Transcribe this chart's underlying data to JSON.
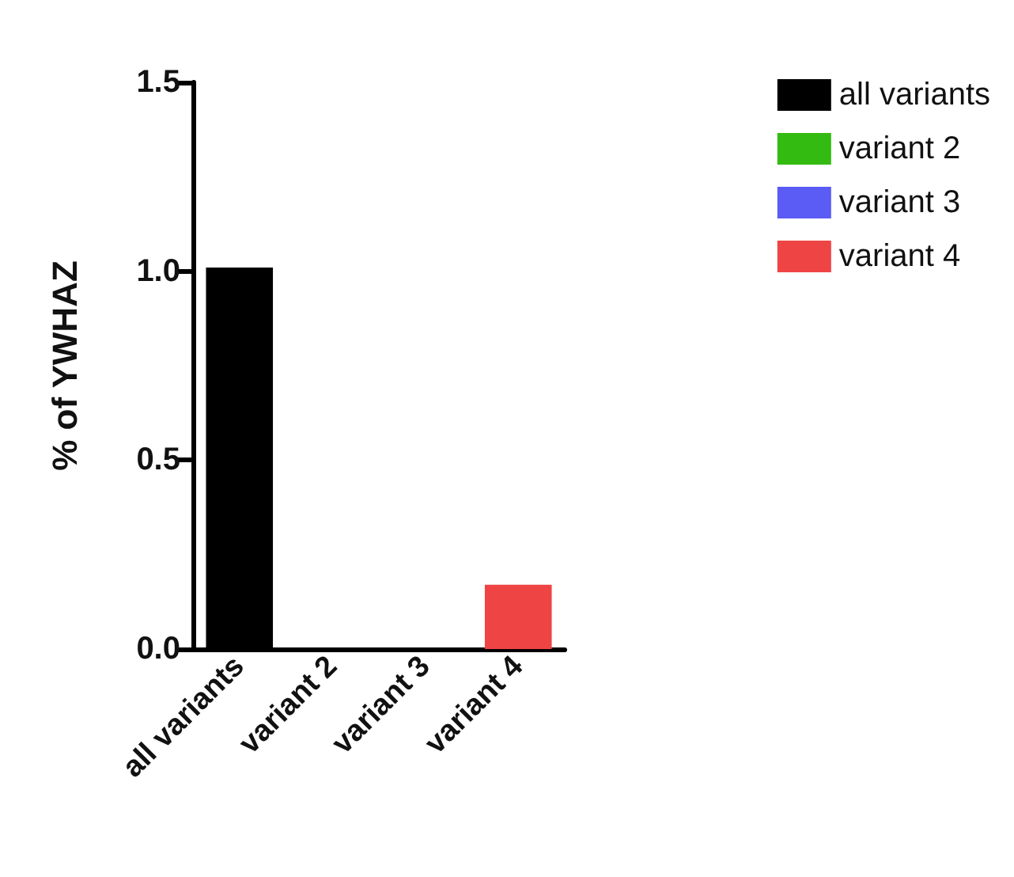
{
  "chart_data": {
    "type": "bar",
    "ylabel": "% of YWHAZ",
    "categories": [
      "all variants",
      "variant 2",
      "variant 3",
      "variant 4"
    ],
    "series": [
      {
        "name": "all variants",
        "color": "#000000",
        "values": [
          1.01,
          null,
          null,
          null
        ]
      },
      {
        "name": "variant 2",
        "color": "#33bb11",
        "values": [
          null,
          0,
          null,
          null
        ]
      },
      {
        "name": "variant 3",
        "color": "#5b5bf5",
        "values": [
          null,
          null,
          0,
          null
        ]
      },
      {
        "name": "variant 4",
        "color": "#ef4444",
        "values": [
          null,
          null,
          null,
          0.17
        ]
      }
    ],
    "ylim": [
      0,
      1.5
    ],
    "yticks": [
      {
        "value": 0,
        "label": "0.0"
      },
      {
        "value": 0.5,
        "label": "0.5"
      },
      {
        "value": 1,
        "label": "1.0"
      },
      {
        "value": 1.5,
        "label": "1.5"
      }
    ],
    "grid": false,
    "legend": "right"
  }
}
